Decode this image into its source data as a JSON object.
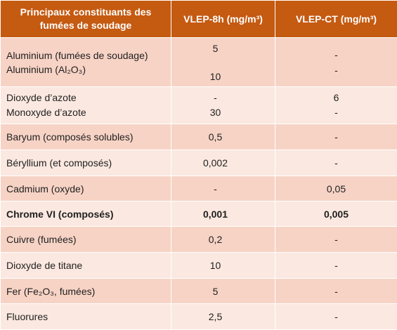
{
  "table": {
    "header": [
      "Principaux constituants des fumées de soudage",
      "VLEP-8h (mg/m³)",
      "VLEP-CT (mg/m³)"
    ],
    "rows": [
      [
        [
          "Aluminium (fumées de soudage)",
          "Aluminium (Al₂O₃)"
        ],
        [
          "5",
          "10"
        ],
        [
          "-",
          "-"
        ]
      ],
      [
        [
          "Dioxyde d’azote",
          "Monoxyde d’azote"
        ],
        [
          "-",
          "30"
        ],
        [
          "6",
          "-"
        ]
      ],
      [
        "Baryum (composés solubles)",
        "0,5",
        "-"
      ],
      [
        "Béryllium (et composés)",
        "0,002",
        "-"
      ],
      [
        "Cadmium (oxyde)",
        "-",
        "0,05"
      ],
      [
        "Chrome VI (composés)",
        "0,001",
        "0,005"
      ],
      [
        "Cuivre (fumées)",
        "0,2",
        "-"
      ],
      [
        "Dioxyde de titane",
        "10",
        "-"
      ],
      [
        "Fer (Fe₂O₃, fumées)",
        "5",
        "-"
      ],
      [
        "Fluorures",
        "2,5",
        "-"
      ]
    ]
  }
}
